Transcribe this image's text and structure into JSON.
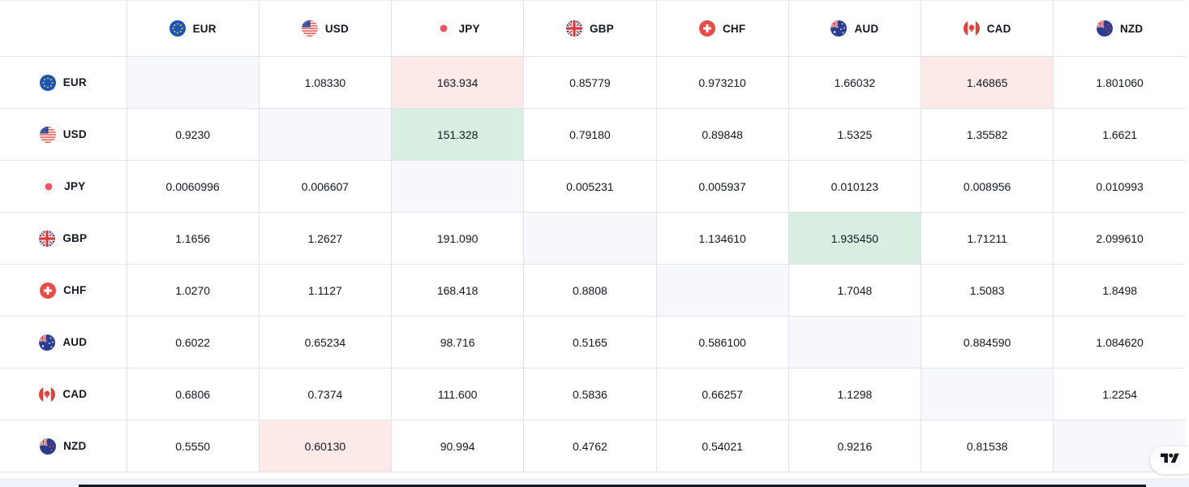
{
  "colors": {
    "up_flash": "#d8efe2",
    "down_flash": "#fceae8",
    "diagonal_bg": "#f6f8fc",
    "border": "#e0e3eb",
    "text": "#131722",
    "page_bg": "#eff2f8"
  },
  "currencies": [
    {
      "code": "EUR",
      "icon": "eur-flag-icon"
    },
    {
      "code": "USD",
      "icon": "usd-flag-icon"
    },
    {
      "code": "JPY",
      "icon": "jpy-flag-icon"
    },
    {
      "code": "GBP",
      "icon": "gbp-flag-icon"
    },
    {
      "code": "CHF",
      "icon": "chf-flag-icon"
    },
    {
      "code": "AUD",
      "icon": "aud-flag-icon"
    },
    {
      "code": "CAD",
      "icon": "cad-flag-icon"
    },
    {
      "code": "NZD",
      "icon": "nzd-flag-icon"
    }
  ],
  "rates": {
    "rows": [
      {
        "code": "EUR",
        "values": [
          "",
          "1.08330",
          "163.934",
          "0.85779",
          "0.973210",
          "1.66032",
          "1.46865",
          "1.801060"
        ],
        "flash": [
          null,
          null,
          "down",
          null,
          null,
          null,
          "down",
          null
        ]
      },
      {
        "code": "USD",
        "values": [
          "0.9230",
          "",
          "151.328",
          "0.79180",
          "0.89848",
          "1.5325",
          "1.35582",
          "1.6621"
        ],
        "flash": [
          null,
          null,
          "up",
          null,
          null,
          null,
          null,
          null
        ]
      },
      {
        "code": "JPY",
        "values": [
          "0.0060996",
          "0.006607",
          "",
          "0.005231",
          "0.005937",
          "0.010123",
          "0.008956",
          "0.010993"
        ],
        "flash": [
          null,
          null,
          null,
          null,
          null,
          null,
          null,
          null
        ]
      },
      {
        "code": "GBP",
        "values": [
          "1.1656",
          "1.2627",
          "191.090",
          "",
          "1.134610",
          "1.935450",
          "1.71211",
          "2.099610"
        ],
        "flash": [
          null,
          null,
          null,
          null,
          null,
          "up",
          null,
          null
        ]
      },
      {
        "code": "CHF",
        "values": [
          "1.0270",
          "1.1127",
          "168.418",
          "0.8808",
          "",
          "1.7048",
          "1.5083",
          "1.8498"
        ],
        "flash": [
          null,
          null,
          null,
          null,
          null,
          null,
          null,
          null
        ]
      },
      {
        "code": "AUD",
        "values": [
          "0.6022",
          "0.65234",
          "98.716",
          "0.5165",
          "0.586100",
          "",
          "0.884590",
          "1.084620"
        ],
        "flash": [
          null,
          null,
          null,
          null,
          null,
          null,
          null,
          null
        ]
      },
      {
        "code": "CAD",
        "values": [
          "0.6806",
          "0.7374",
          "111.600",
          "0.5836",
          "0.66257",
          "1.1298",
          "",
          "1.2254"
        ],
        "flash": [
          null,
          null,
          null,
          null,
          null,
          null,
          null,
          null
        ]
      },
      {
        "code": "NZD",
        "values": [
          "0.5550",
          "0.60130",
          "90.994",
          "0.4762",
          "0.54021",
          "0.9216",
          "0.81538",
          ""
        ],
        "flash": [
          null,
          "down",
          null,
          null,
          null,
          null,
          null,
          null
        ]
      }
    ]
  },
  "logo": {
    "icon": "tradingview-logo-icon"
  }
}
